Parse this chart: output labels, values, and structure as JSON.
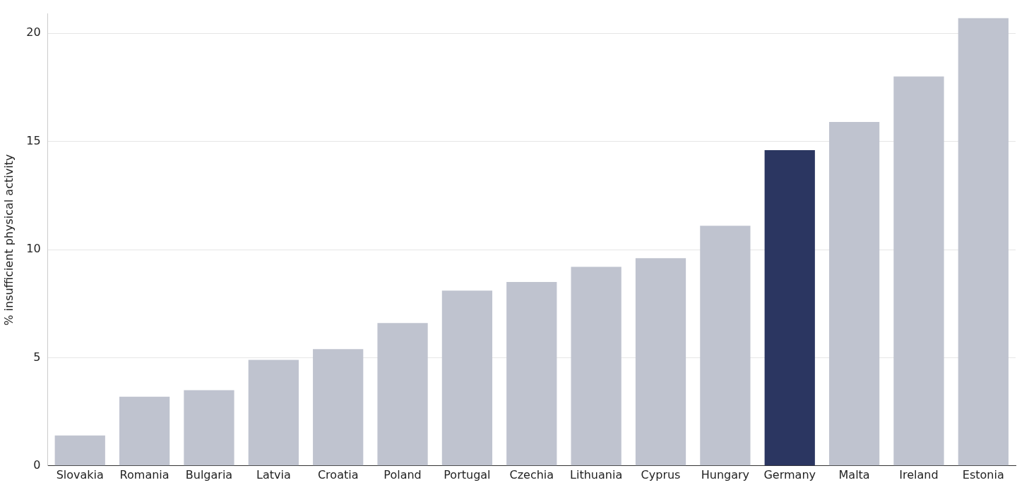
{
  "chart_data": {
    "type": "bar",
    "ylabel": "% insufficient physical activity",
    "categories": [
      "Slovakia",
      "Romania",
      "Bulgaria",
      "Latvia",
      "Croatia",
      "Poland",
      "Portugal",
      "Czechia",
      "Lithuania",
      "Cyprus",
      "Hungary",
      "Germany",
      "Malta",
      "Ireland",
      "Estonia"
    ],
    "values": [
      1.4,
      3.2,
      3.5,
      4.9,
      5.4,
      6.6,
      8.1,
      8.5,
      9.2,
      9.6,
      11.1,
      14.6,
      15.9,
      18.0,
      20.7
    ],
    "colors": [
      "#bfc3cf",
      "#bfc3cf",
      "#bfc3cf",
      "#bfc3cf",
      "#bfc3cf",
      "#bfc3cf",
      "#bfc3cf",
      "#bfc3cf",
      "#bfc3cf",
      "#bfc3cf",
      "#bfc3cf",
      "#2b3661",
      "#bfc3cf",
      "#bfc3cf",
      "#bfc3cf"
    ],
    "ylim": [
      0,
      20.9
    ],
    "yticks": [
      0,
      5,
      10,
      15,
      20
    ],
    "grid": "y",
    "legend": false
  }
}
